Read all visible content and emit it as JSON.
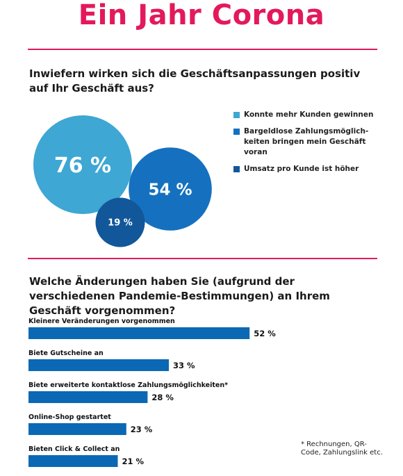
{
  "header": {
    "title": "Ein Jahr Corona"
  },
  "section1": {
    "question": "Inwiefern wirken sich die Geschäftsanpassungen positiv auf Ihr Geschäft aus?"
  },
  "section2": {
    "question": "Welche Änderungen haben Sie (aufgrund der verschiedenen Pandemie-Bestimmungen) an Ihrem Geschäft vorgenommen?"
  },
  "footnote": "* Rechnungen, QR-Code, Zahlungslink etc.",
  "colors": {
    "accent": "#e3195b",
    "light_blue": "#3ea7d3",
    "mid_blue": "#1571bf",
    "dark_blue": "#11579a",
    "bar_blue": "#0b68b5"
  },
  "chart_data": [
    {
      "type": "bubble",
      "series": [
        {
          "name": "Konnte mehr Kunden gewinnen",
          "value": 76,
          "label": "76 %",
          "color": "#3ea7d3"
        },
        {
          "name": "Bargeldlose Zahlungsmöglichkeiten bringen mein Geschäft voran",
          "value": 54,
          "label": "54 %",
          "color": "#1571bf"
        },
        {
          "name": "Umsatz pro Kunde ist höher",
          "value": 19,
          "label": "19 %",
          "color": "#11579a"
        }
      ],
      "legend": [
        "Konnte mehr Kunden gewinnen",
        "Bargeldlose Zahlungsmöglich-keiten bringen mein Geschäft voran",
        "Umsatz pro Kunde ist höher"
      ],
      "legend_position": "right"
    },
    {
      "type": "bar",
      "orientation": "horizontal",
      "categories": [
        "Kleinere Veränderungen vorgenommen",
        "Biete Gutscheine an",
        "Biete erweiterte kontaktlose Zahlungsmöglichkeiten*",
        "Online-Shop gestartet",
        "Bieten Click & Collect an"
      ],
      "values": [
        52,
        33,
        28,
        23,
        21
      ],
      "value_labels": [
        "52 %",
        "33 %",
        "28 %",
        "23 %",
        "21 %"
      ],
      "xlim": [
        0,
        100
      ],
      "grid": false
    }
  ]
}
